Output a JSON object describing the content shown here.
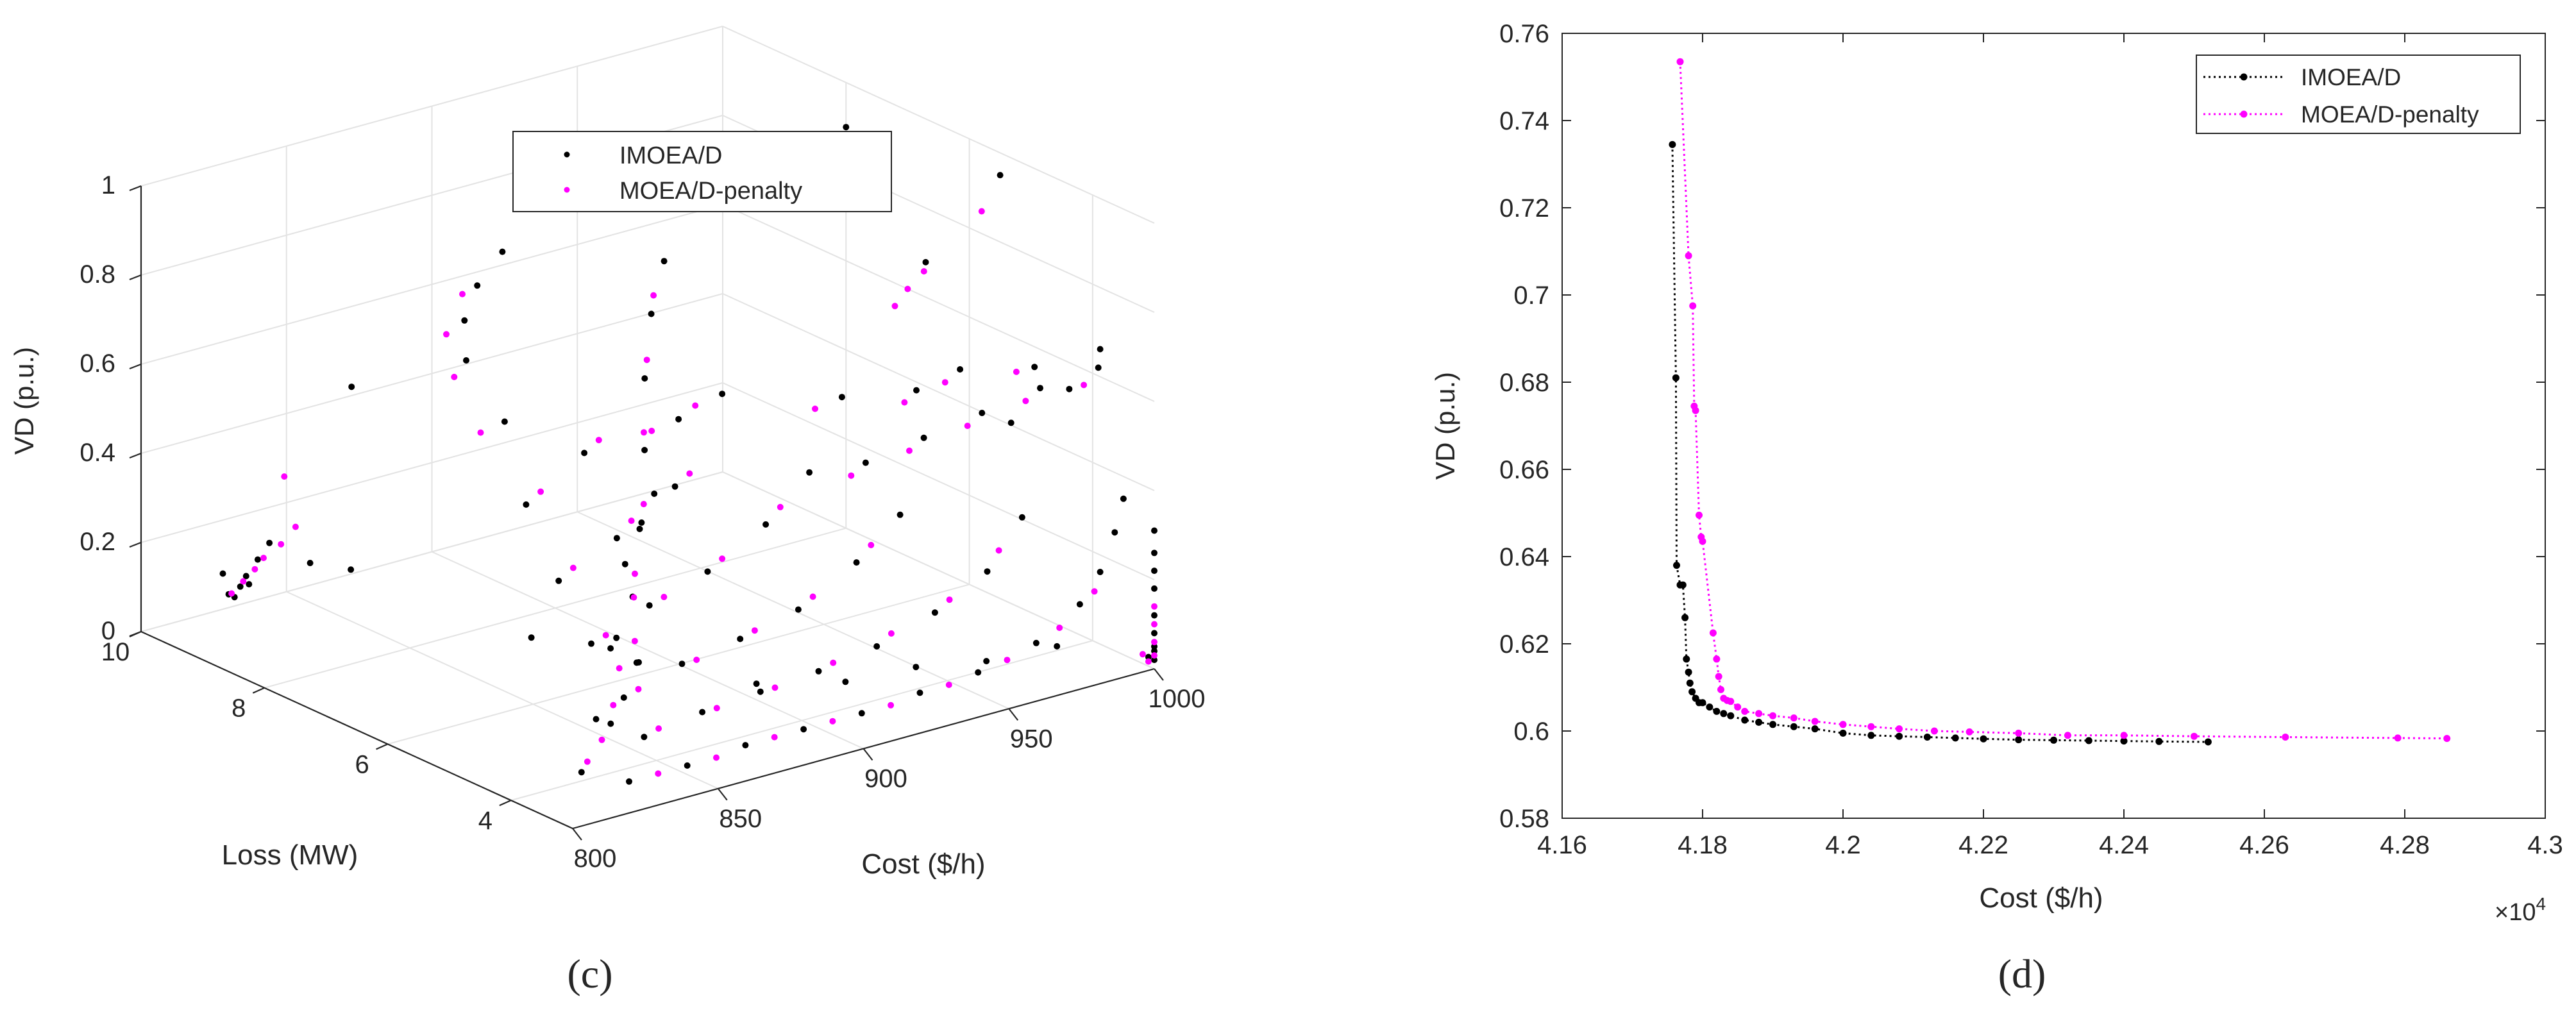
{
  "panels": {
    "left_label": "(c)",
    "right_label": "(d)"
  },
  "chart_data": [
    {
      "type": "scatter3d",
      "xlabel": "Cost ($/h)",
      "ylabel": "Loss (MW)",
      "zlabel": "VD (p.u.)",
      "xlim": [
        800,
        1000
      ],
      "ylim": [
        3,
        10
      ],
      "zlim": [
        0,
        1
      ],
      "x_ticks": [
        "800",
        "850",
        "900",
        "950",
        "1000"
      ],
      "y_ticks": [
        "4",
        "6",
        "8",
        "10"
      ],
      "z_ticks": [
        "0",
        "0.2",
        "0.4",
        "0.6",
        "0.8",
        "1"
      ],
      "legend": {
        "position": "top-center",
        "entries": [
          "IMOEA/D",
          "MOEA/D-penalty"
        ]
      },
      "series": [
        {
          "name": "IMOEA/D",
          "color": "#000000",
          "points": [
            [
              830,
              9.9,
              0.03
            ],
            [
              835,
              9.9,
              0.05
            ],
            [
              826,
              9.9,
              0.09
            ],
            [
              832,
              9.9,
              0.05
            ],
            [
              828,
              9.9,
              0.04
            ],
            [
              834,
              9.9,
              0.07
            ],
            [
              838,
              9.9,
              0.1
            ],
            [
              842,
              9.9,
              0.13
            ],
            [
              856,
              9.9,
              0.06
            ],
            [
              870,
              9.9,
              0.02
            ],
            [
              866,
              9.7,
              0.45
            ],
            [
              1000,
              3.0,
              0.05
            ],
            [
              1000,
              3.0,
              0.08
            ],
            [
              1000,
              3.0,
              0.12
            ],
            [
              1000,
              3.0,
              0.18
            ],
            [
              1000,
              3.0,
              0.22
            ],
            [
              1000,
              3.0,
              0.26
            ],
            [
              1000,
              3.0,
              0.31
            ],
            [
              1000,
              3.0,
              0.02
            ],
            [
              1000,
              3.0,
              0.04
            ],
            [
              998,
              3.0,
              0.03
            ],
            [
              820,
              3.8,
              0.04
            ],
            [
              825,
              3.8,
              0.15
            ],
            [
              830,
              3.8,
              0.3
            ],
            [
              835,
              3.8,
              0.48
            ],
            [
              832,
              3.8,
              0.32
            ],
            [
              840,
              3.8,
              0.55
            ],
            [
              845,
              3.8,
              0.62
            ],
            [
              830,
              3.5,
              0.02
            ],
            [
              850,
              3.5,
              0.02
            ],
            [
              870,
              3.5,
              0.03
            ],
            [
              890,
              3.5,
              0.03
            ],
            [
              910,
              3.5,
              0.03
            ],
            [
              930,
              3.5,
              0.04
            ],
            [
              950,
              3.5,
              0.05
            ],
            [
              970,
              3.5,
              0.08
            ],
            [
              985,
              3.5,
              0.14
            ],
            [
              992,
              3.5,
              0.2
            ],
            [
              997,
              3.5,
              0.28
            ],
            [
              1000,
              3.5,
              0.35
            ],
            [
              850,
              4.2,
              0.04
            ],
            [
              870,
              4.2,
              0.06
            ],
            [
              890,
              4.2,
              0.07
            ],
            [
              910,
              4.2,
              0.08
            ],
            [
              930,
              4.2,
              0.1
            ],
            [
              950,
              4.2,
              0.14
            ],
            [
              968,
              4.2,
              0.2
            ],
            [
              980,
              4.2,
              0.3
            ],
            [
              860,
              5.0,
              0.06
            ],
            [
              880,
              5.0,
              0.1
            ],
            [
              900,
              5.0,
              0.12
            ],
            [
              920,
              5.0,
              0.15
            ],
            [
              940,
              5.0,
              0.22
            ],
            [
              955,
              5.0,
              0.3
            ],
            [
              870,
              6.0,
              0.1
            ],
            [
              890,
              6.0,
              0.15
            ],
            [
              910,
              6.0,
              0.19
            ],
            [
              930,
              6.0,
              0.26
            ],
            [
              945,
              6.0,
              0.35
            ],
            [
              880,
              7.0,
              0.16
            ],
            [
              900,
              7.0,
              0.22
            ],
            [
              920,
              7.0,
              0.3
            ],
            [
              890,
              8.0,
              0.25
            ],
            [
              910,
              8.0,
              0.33
            ],
            [
              860,
              6.5,
              0.1
            ],
            [
              875,
              5.5,
              0.08
            ],
            [
              895,
              4.5,
              0.06
            ],
            [
              915,
              4.0,
              0.06
            ],
            [
              935,
              3.8,
              0.07
            ],
            [
              955,
              3.6,
              0.06
            ],
            [
              975,
              3.4,
              0.07
            ],
            [
              847,
              4.6,
              0.05
            ],
            [
              863,
              4.9,
              0.14
            ],
            [
              880,
              5.8,
              0.2
            ],
            [
              900,
              6.6,
              0.28
            ],
            [
              918,
              7.4,
              0.36
            ],
            [
              935,
              8.2,
              0.44
            ],
            [
              950,
              8.8,
              0.52
            ],
            [
              965,
              9.3,
              0.58
            ],
            [
              905,
              3.2,
              0.62
            ],
            [
              925,
              3.2,
              0.64
            ],
            [
              945,
              3.2,
              0.66
            ],
            [
              965,
              3.2,
              0.68
            ],
            [
              985,
              3.2,
              0.69
            ],
            [
              955,
              3.2,
              0.62
            ],
            [
              975,
              3.2,
              0.66
            ],
            [
              900,
              6.0,
              0.55
            ],
            [
              915,
              6.0,
              0.58
            ],
            [
              935,
              5.0,
              0.6
            ],
            [
              950,
              4.5,
              0.62
            ],
            [
              965,
              4.5,
              0.64
            ],
            [
              980,
              4.0,
              0.65
            ],
            [
              992,
              3.5,
              0.7
            ],
            [
              872,
              7.5,
              0.5
            ],
            [
              880,
              8.5,
              0.56
            ],
            [
              890,
              9.0,
              0.6
            ],
            [
              905,
              9.5,
              0.62
            ],
            [
              920,
              9.8,
              0.65
            ],
            [
              1000,
              5.5,
              0.95
            ],
            [
              1000,
              8.0,
              0.9
            ],
            [
              990,
              7.0,
              0.8
            ],
            [
              985,
              6.0,
              0.75
            ]
          ]
        },
        {
          "name": "MOEA/D-penalty",
          "color": "#FF00FF",
          "points": [
            [
              829,
              9.9,
              0.04
            ],
            [
              833,
              9.9,
              0.06
            ],
            [
              837,
              9.9,
              0.08
            ],
            [
              840,
              9.9,
              0.1
            ],
            [
              846,
              9.9,
              0.12
            ],
            [
              851,
              9.9,
              0.15
            ],
            [
              845,
              9.8,
              0.28
            ],
            [
              1000,
              3.0,
              0.03
            ],
            [
              1000,
              3.0,
              0.06
            ],
            [
              1000,
              3.0,
              0.1
            ],
            [
              998,
              3.0,
              0.02
            ],
            [
              996,
              3.0,
              0.04
            ],
            [
              1000,
              3.0,
              0.14
            ],
            [
              822,
              3.8,
              0.06
            ],
            [
              827,
              3.8,
              0.1
            ],
            [
              833,
              3.8,
              0.25
            ],
            [
              838,
              3.8,
              0.4
            ],
            [
              840,
              3.5,
              0.02
            ],
            [
              860,
              3.5,
              0.02
            ],
            [
              880,
              3.5,
              0.03
            ],
            [
              900,
              3.5,
              0.03
            ],
            [
              920,
              3.5,
              0.03
            ],
            [
              940,
              3.5,
              0.04
            ],
            [
              960,
              3.5,
              0.06
            ],
            [
              978,
              3.5,
              0.1
            ],
            [
              990,
              3.5,
              0.16
            ],
            [
              855,
              4.2,
              0.05
            ],
            [
              875,
              4.2,
              0.06
            ],
            [
              895,
              4.2,
              0.07
            ],
            [
              915,
              4.2,
              0.09
            ],
            [
              935,
              4.2,
              0.12
            ],
            [
              955,
              4.2,
              0.16
            ],
            [
              972,
              4.2,
              0.24
            ],
            [
              865,
              5.0,
              0.07
            ],
            [
              885,
              5.0,
              0.1
            ],
            [
              905,
              5.0,
              0.13
            ],
            [
              925,
              5.0,
              0.17
            ],
            [
              945,
              5.0,
              0.25
            ],
            [
              875,
              6.0,
              0.11
            ],
            [
              895,
              6.0,
              0.16
            ],
            [
              915,
              6.0,
              0.21
            ],
            [
              935,
              6.0,
              0.29
            ],
            [
              885,
              7.0,
              0.18
            ],
            [
              905,
              7.0,
              0.25
            ],
            [
              925,
              7.0,
              0.32
            ],
            [
              895,
              8.0,
              0.27
            ],
            [
              915,
              8.0,
              0.35
            ],
            [
              850,
              4.7,
              0.08
            ],
            [
              868,
              5.2,
              0.16
            ],
            [
              885,
              6.0,
              0.23
            ],
            [
              905,
              6.8,
              0.3
            ],
            [
              922,
              7.6,
              0.38
            ],
            [
              940,
              8.4,
              0.46
            ],
            [
              955,
              9.0,
              0.54
            ],
            [
              900,
              3.2,
              0.6
            ],
            [
              920,
              3.2,
              0.62
            ],
            [
              940,
              3.2,
              0.64
            ],
            [
              960,
              3.2,
              0.66
            ],
            [
              980,
              3.2,
              0.66
            ],
            [
              895,
              6.2,
              0.52
            ],
            [
              910,
              6.2,
              0.55
            ],
            [
              930,
              5.2,
              0.57
            ],
            [
              948,
              4.6,
              0.59
            ],
            [
              962,
              4.6,
              0.61
            ],
            [
              978,
              4.2,
              0.63
            ],
            [
              868,
              7.7,
              0.47
            ],
            [
              878,
              8.6,
              0.52
            ],
            [
              888,
              9.2,
              0.56
            ],
            [
              902,
              9.6,
              0.6
            ],
            [
              1000,
              5.8,
              0.85
            ],
            [
              1000,
              7.0,
              0.6
            ],
            [
              995,
              6.5,
              0.68
            ],
            [
              985,
              6.5,
              0.62
            ]
          ]
        }
      ]
    },
    {
      "type": "line",
      "xlabel": "Cost ($/h)",
      "ylabel": "VD (p.u.)",
      "xlim": [
        4.16,
        4.3
      ],
      "ylim": [
        0.58,
        0.76
      ],
      "x_ticks": [
        "4.16",
        "4.18",
        "4.2",
        "4.22",
        "4.24",
        "4.26",
        "4.28",
        "4.3"
      ],
      "y_ticks": [
        "0.58",
        "0.6",
        "0.62",
        "0.64",
        "0.66",
        "0.68",
        "0.7",
        "0.72",
        "0.74",
        "0.76"
      ],
      "x_exponent": "×10",
      "x_exponent_power": "4",
      "legend": {
        "position": "top-right",
        "entries": [
          "IMOEA/D",
          "MOEA/D-penalty"
        ]
      },
      "series": [
        {
          "name": "IMOEA/D",
          "color": "#000000",
          "x": [
            4.1757,
            4.1762,
            4.1763,
            4.1768,
            4.1772,
            4.1775,
            4.1777,
            4.178,
            4.1782,
            4.1785,
            4.179,
            4.1795,
            4.18,
            4.181,
            4.182,
            4.183,
            4.184,
            4.186,
            4.188,
            4.19,
            4.193,
            4.196,
            4.2,
            4.204,
            4.208,
            4.212,
            4.216,
            4.22,
            4.225,
            4.23,
            4.235,
            4.24,
            4.245,
            4.252
          ],
          "y": [
            0.7345,
            0.681,
            0.638,
            0.6335,
            0.6335,
            0.626,
            0.6165,
            0.6135,
            0.611,
            0.609,
            0.6075,
            0.6065,
            0.6065,
            0.6055,
            0.6045,
            0.604,
            0.6035,
            0.6025,
            0.602,
            0.6015,
            0.601,
            0.6005,
            0.5995,
            0.599,
            0.5988,
            0.5986,
            0.5984,
            0.5982,
            0.598,
            0.5979,
            0.5978,
            0.5977,
            0.5976,
            0.5975
          ]
        },
        {
          "name": "MOEA/D-penalty",
          "color": "#FF00FF",
          "x": [
            4.1768,
            4.178,
            4.1786,
            4.1788,
            4.179,
            4.1795,
            4.1798,
            4.18,
            4.1815,
            4.182,
            4.1823,
            4.1826,
            4.183,
            4.1835,
            4.184,
            4.185,
            4.186,
            4.188,
            4.19,
            4.193,
            4.196,
            4.2,
            4.204,
            4.208,
            4.213,
            4.218,
            4.225,
            4.232,
            4.24,
            4.25,
            4.263,
            4.279,
            4.286
          ],
          "y": [
            0.7535,
            0.709,
            0.6975,
            0.6745,
            0.6735,
            0.6495,
            0.6445,
            0.6435,
            0.6225,
            0.6165,
            0.6125,
            0.6095,
            0.6075,
            0.607,
            0.6068,
            0.6055,
            0.6045,
            0.604,
            0.6035,
            0.603,
            0.6022,
            0.6015,
            0.601,
            0.6005,
            0.6,
            0.5998,
            0.5995,
            0.599,
            0.599,
            0.5988,
            0.5986,
            0.5984,
            0.5983
          ]
        }
      ]
    }
  ]
}
